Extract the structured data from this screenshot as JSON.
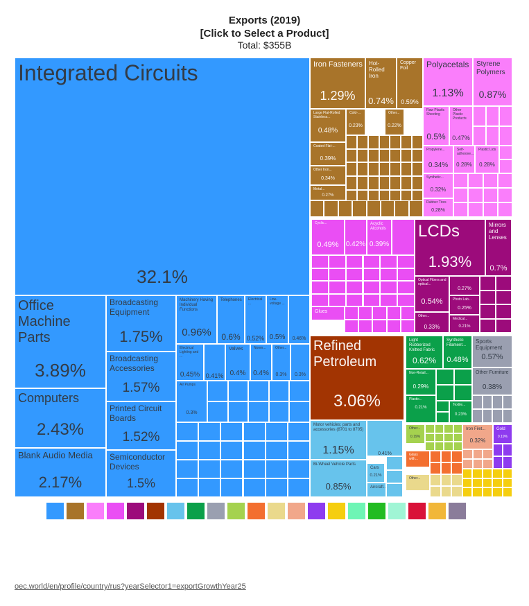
{
  "header": {
    "title": "Exports (2019)",
    "subtitle": "[Click to Select a Product]",
    "total": "Total: $355B"
  },
  "chart_data": {
    "type": "treemap",
    "title": "Exports (2019)",
    "subtitle": "[Click to Select a Product]",
    "total_label": "Total: $355B",
    "unit": "percent of total exports",
    "tiles": [
      {
        "id": "t-ic",
        "name": "Integrated Circuits",
        "value": 32.1,
        "pct_label": "32.1%",
        "color": "#3399ff"
      },
      {
        "id": "t-omp",
        "name": "Office Machine Parts",
        "value": 3.89,
        "pct_label": "3.89%",
        "color": "#3399ff"
      },
      {
        "id": "t-comp",
        "name": "Computers",
        "value": 2.43,
        "pct_label": "2.43%",
        "color": "#3399ff"
      },
      {
        "id": "t-bam",
        "name": "Blank Audio Media",
        "value": 2.17,
        "pct_label": "2.17%",
        "color": "#3399ff"
      },
      {
        "id": "t-be",
        "name": "Broadcasting Equipment",
        "value": 1.75,
        "pct_label": "1.75%",
        "color": "#3399ff"
      },
      {
        "id": "t-ba",
        "name": "Broadcasting Accessories",
        "value": 1.57,
        "pct_label": "1.57%",
        "color": "#3399ff"
      },
      {
        "id": "t-pcb",
        "name": "Printed Circuit Boards",
        "value": 1.52,
        "pct_label": "1.52%",
        "color": "#3399ff"
      },
      {
        "id": "t-sd",
        "name": "Semiconductor Devices",
        "value": 1.5,
        "pct_label": "1.5%",
        "color": "#3399ff"
      },
      {
        "id": "t-mach",
        "name": "Machinery Having Individual Functions",
        "value": 0.96,
        "pct_label": "0.96%",
        "color": "#3399ff"
      },
      {
        "id": "t-tel",
        "name": "Telephones",
        "value": 0.6,
        "pct_label": "0.6%",
        "color": "#3399ff"
      },
      {
        "id": "t-elec",
        "name": "Electrical ...",
        "value": 0.52,
        "pct_label": "0.52%",
        "color": "#3399ff"
      },
      {
        "id": "t-lowv",
        "name": "Low-voltage ...",
        "value": 0.5,
        "pct_label": "0.5%",
        "color": "#3399ff"
      },
      {
        "id": "t-blue1",
        "name": "",
        "value": 0.46,
        "pct_label": "0.46%",
        "color": "#3399ff"
      },
      {
        "id": "t-elight",
        "name": "Electrical Lighting and ...",
        "value": 0.45,
        "pct_label": "0.45%",
        "color": "#3399ff"
      },
      {
        "id": "t-blue2",
        "name": "",
        "value": 0.41,
        "pct_label": "0.41%",
        "color": "#3399ff"
      },
      {
        "id": "t-valves",
        "name": "Valves",
        "value": 0.4,
        "pct_label": "0.4%",
        "color": "#3399ff"
      },
      {
        "id": "t-nonm",
        "name": "Nonm...",
        "value": 0.4,
        "pct_label": "0.4%",
        "color": "#3399ff"
      },
      {
        "id": "t-oth1",
        "name": "Other...",
        "value": 0.3,
        "pct_label": "0.3%",
        "color": "#3399ff"
      },
      {
        "id": "t-blue3",
        "name": "",
        "value": 0.3,
        "pct_label": "0.3%",
        "color": "#3399ff"
      },
      {
        "id": "t-airp",
        "name": "Air Pumps",
        "value": 0.3,
        "pct_label": "0.3%",
        "color": "#3399ff"
      },
      {
        "id": "t-iron",
        "name": "Iron Fasteners",
        "value": 1.29,
        "pct_label": "1.29%",
        "color": "#a8742a"
      },
      {
        "id": "t-hri",
        "name": "Hot-Rolled Iron",
        "value": 0.74,
        "pct_label": "0.74%",
        "color": "#a8742a"
      },
      {
        "id": "t-cu",
        "name": "Copper Foil",
        "value": 0.59,
        "pct_label": "0.59%",
        "color": "#a8742a"
      },
      {
        "id": "t-lfr",
        "name": "Large Flat-Rolled Stainless...",
        "value": 0.48,
        "pct_label": "0.48%",
        "color": "#a8742a"
      },
      {
        "id": "t-cold",
        "name": "Cold-...",
        "value": 0.23,
        "pct_label": "0.23%",
        "color": "#a8742a"
      },
      {
        "id": "t-oth2",
        "name": "Other...",
        "value": 0.22,
        "pct_label": "0.22%",
        "color": "#a8742a"
      },
      {
        "id": "t-coat",
        "name": "Coated Flat-...",
        "value": 0.39,
        "pct_label": "0.39%",
        "color": "#a8742a"
      },
      {
        "id": "t-othiron",
        "name": "Other Iron...",
        "value": 0.34,
        "pct_label": "0.34%",
        "color": "#a8742a"
      },
      {
        "id": "t-metal",
        "name": "Metal...",
        "value": 0.27,
        "pct_label": "0.27%",
        "color": "#a8742a"
      },
      {
        "id": "t-poly",
        "name": "Polyacetals",
        "value": 1.13,
        "pct_label": "1.13%",
        "color": "#fa7efb"
      },
      {
        "id": "t-sty",
        "name": "Styrene Polymers",
        "value": 0.87,
        "pct_label": "0.87%",
        "color": "#fa7efb"
      },
      {
        "id": "t-rawp",
        "name": "Raw Plastic Sheeting",
        "value": 0.5,
        "pct_label": "0.5%",
        "color": "#fa7efb"
      },
      {
        "id": "t-othp",
        "name": "Other Plastic Products",
        "value": 0.47,
        "pct_label": "0.47%",
        "color": "#fa7efb"
      },
      {
        "id": "t-prop",
        "name": "Propylene...",
        "value": 0.34,
        "pct_label": "0.34%",
        "color": "#fa7efb"
      },
      {
        "id": "t-self",
        "name": "Self-adhesive...",
        "value": 0.28,
        "pct_label": "0.28%",
        "color": "#fa7efb"
      },
      {
        "id": "t-plid",
        "name": "Plastic Lids",
        "value": 0.28,
        "pct_label": "0.28%",
        "color": "#fa7efb"
      },
      {
        "id": "t-synth",
        "name": "Synthetic...",
        "value": 0.32,
        "pct_label": "0.32%",
        "color": "#fa7efb"
      },
      {
        "id": "t-rubt",
        "name": "Rubber Tires",
        "value": 0.28,
        "pct_label": "0.28%",
        "color": "#fa7efb"
      },
      {
        "id": "t-chem1",
        "name": "Cyclic...",
        "value": 0.49,
        "pct_label": "0.49%",
        "color": "#ea4ef4"
      },
      {
        "id": "t-chem2",
        "name": "",
        "value": 0.42,
        "pct_label": "0.42%",
        "color": "#ea4ef4"
      },
      {
        "id": "t-acyc",
        "name": "Acyclic Alcohols",
        "value": 0.39,
        "pct_label": "0.39%",
        "color": "#ea4ef4"
      },
      {
        "id": "t-glues",
        "name": "Glues",
        "value": 0.3,
        "pct_label": "",
        "color": "#ea4ef4"
      },
      {
        "id": "t-lcd",
        "name": "LCDs",
        "value": 1.93,
        "pct_label": "1.93%",
        "color": "#9c0b7b"
      },
      {
        "id": "t-mirr",
        "name": "Mirrors and Lenses",
        "value": 0.7,
        "pct_label": "0.7%",
        "color": "#9c0b7b"
      },
      {
        "id": "t-optf",
        "name": "Optical Fibers and optical...",
        "value": 0.54,
        "pct_label": "0.54%",
        "color": "#9c0b7b"
      },
      {
        "id": "t-inst1",
        "name": "",
        "value": 0.27,
        "pct_label": "0.27%",
        "color": "#9c0b7b"
      },
      {
        "id": "t-photo",
        "name": "Photo Lab...",
        "value": 0.25,
        "pct_label": "0.25%",
        "color": "#9c0b7b"
      },
      {
        "id": "t-othinst",
        "name": "Other...",
        "value": 0.33,
        "pct_label": "0.33%",
        "color": "#9c0b7b"
      },
      {
        "id": "t-med",
        "name": "Medical...",
        "value": 0.21,
        "pct_label": "0.21%",
        "color": "#9c0b7b"
      },
      {
        "id": "t-refp",
        "name": "Refined Petroleum",
        "value": 3.06,
        "pct_label": "3.06%",
        "color": "#a23402"
      },
      {
        "id": "t-mvp",
        "name": "Motor vehicles; parts and accessories (8701 to 8705)",
        "value": 1.15,
        "pct_label": "1.15%",
        "color": "#67c3ec"
      },
      {
        "id": "t-2wh",
        "name": "Bi-Wheel Vehicle Parts",
        "value": 0.85,
        "pct_label": "0.85%",
        "color": "#67c3ec"
      },
      {
        "id": "t-veh1",
        "name": "",
        "value": 0.41,
        "pct_label": "0.41%",
        "color": "#67c3ec"
      },
      {
        "id": "t-cars",
        "name": "Cars",
        "value": 0.21,
        "pct_label": "0.21%",
        "color": "#67c3ec"
      },
      {
        "id": "t-airc",
        "name": "Aircraft...",
        "value": 0.15,
        "pct_label": "",
        "color": "#67c3ec"
      },
      {
        "id": "t-lrf",
        "name": "Light Rubberized Knitted Fabric",
        "value": 0.62,
        "pct_label": "0.62%",
        "color": "#0ba04a"
      },
      {
        "id": "t-sfil",
        "name": "Synthetic Filament...",
        "value": 0.48,
        "pct_label": "0.48%",
        "color": "#0ba04a"
      },
      {
        "id": "t-nonr",
        "name": "Non-Retail...",
        "value": 0.29,
        "pct_label": "0.29%",
        "color": "#0ba04a"
      },
      {
        "id": "t-plas2",
        "name": "Plastic...",
        "value": 0.21,
        "pct_label": "0.21%",
        "color": "#0ba04a"
      },
      {
        "id": "t-text",
        "name": "Textile...",
        "value": 0.23,
        "pct_label": "0.23%",
        "color": "#0ba04a"
      },
      {
        "id": "t-sport",
        "name": "Sports Equipment",
        "value": 0.57,
        "pct_label": "0.57%",
        "color": "#9a9fb0"
      },
      {
        "id": "t-furn",
        "name": "Other Furniture",
        "value": 0.38,
        "pct_label": "0.38%",
        "color": "#9a9fb0"
      },
      {
        "id": "t-othv",
        "name": "Other...",
        "value": 0.19,
        "pct_label": "0.19%",
        "color": "#a5d24f"
      },
      {
        "id": "t-ironf",
        "name": "Iron Filet...",
        "value": 0.32,
        "pct_label": "0.32%",
        "color": "#f1a78a"
      },
      {
        "id": "t-gold",
        "name": "Gold",
        "value": 0.19,
        "pct_label": "0.19%",
        "color": "#8e3bef"
      },
      {
        "id": "t-glass",
        "name": "Glass with...",
        "value": 0.15,
        "pct_label": "",
        "color": "#f36f30"
      },
      {
        "id": "t-othf",
        "name": "Other...",
        "value": 0.15,
        "pct_label": "",
        "color": "#ead98c"
      }
    ],
    "legend_colors": [
      "#3399ff",
      "#a8742a",
      "#fa7efb",
      "#ea4ef4",
      "#9c0b7b",
      "#a23402",
      "#67c3ec",
      "#0ba04a",
      "#9a9fb0",
      "#a5d24f",
      "#f36f30",
      "#ead98c",
      "#f1a78a",
      "#8e3bef",
      "#f5ce0f",
      "#6ef5b5",
      "#22bc22",
      "#a0f5d5",
      "#d91238",
      "#f1b739",
      "#8a7c9a"
    ]
  },
  "footer": {
    "link": "oec.world/en/profile/country/rus?yearSelector1=exportGrowthYear25"
  }
}
